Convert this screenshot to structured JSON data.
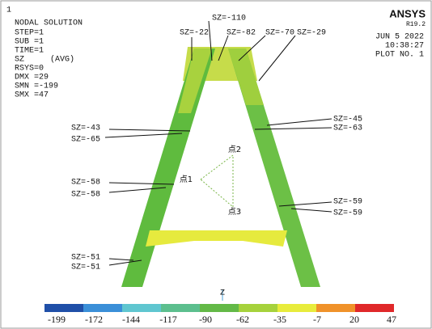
{
  "corner_mark": "1",
  "info": {
    "title": "NODAL SOLUTION",
    "lines": [
      "STEP=1",
      "SUB =1",
      "TIME=1",
      "SZ",
      "RSYS=0",
      "DMX =29",
      "SMN =-199",
      "SMX =47"
    ],
    "avg": "(AVG)"
  },
  "brand": {
    "name": "ANSYS",
    "version": "R19.2",
    "date": "JUN  5 2022",
    "time": "10:38:27",
    "plot": "PLOT NO.   1"
  },
  "annotations": [
    "SZ=-22",
    "SZ=-110",
    "SZ=-82",
    "SZ=-70",
    "SZ=-29",
    "SZ=-45",
    "SZ=-63",
    "SZ=-43",
    "SZ=-65",
    "SZ=-58",
    "SZ=-58",
    "SZ=-59",
    "SZ=-59",
    "SZ=-51",
    "SZ=-51"
  ],
  "points": [
    "点1",
    "点2",
    "点3"
  ],
  "axis_label": "Z",
  "colorbar": {
    "labels": [
      -199,
      -172,
      -144,
      -117,
      -90,
      -62,
      -35,
      -7,
      20,
      47
    ],
    "colors": [
      "#1f4fa8",
      "#3a8fd8",
      "#5fc6d0",
      "#5cbf8e",
      "#63b947",
      "#a6d23c",
      "#e8ec3c",
      "#f0922a",
      "#e0282a"
    ]
  }
}
